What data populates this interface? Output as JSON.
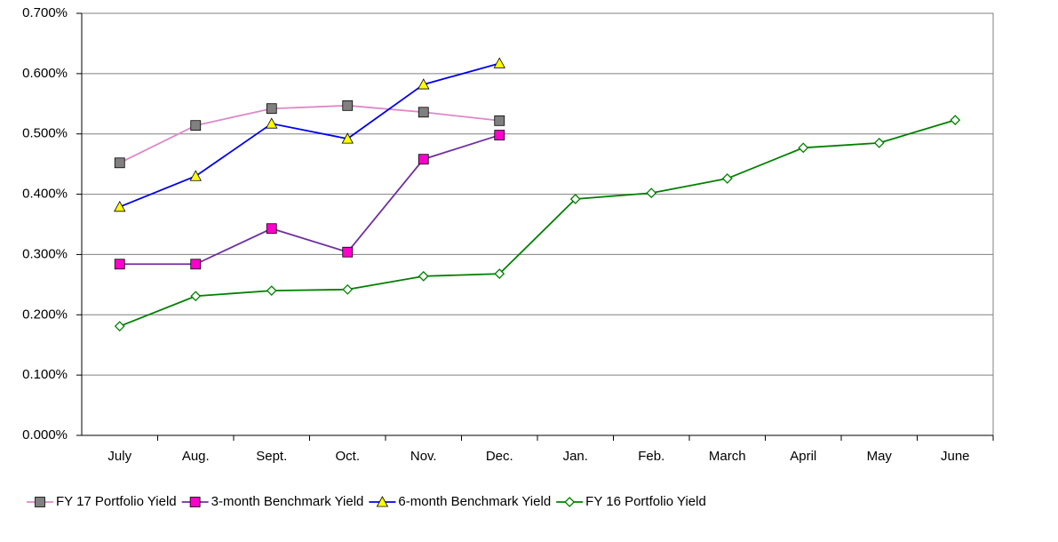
{
  "chart_data": {
    "type": "line",
    "categories": [
      "July",
      "Aug.",
      "Sept.",
      "Oct.",
      "Nov.",
      "Dec.",
      "Jan.",
      "Feb.",
      "March",
      "April",
      "May",
      "June"
    ],
    "ylim": [
      0,
      0.7
    ],
    "yticks": [
      {
        "value": 0,
        "label": "0.000%"
      },
      {
        "value": 0.1,
        "label": "0.100%"
      },
      {
        "value": 0.2,
        "label": "0.200%"
      },
      {
        "value": 0.3,
        "label": "0.300%"
      },
      {
        "value": 0.4,
        "label": "0.400%"
      },
      {
        "value": 0.5,
        "label": "0.500%"
      },
      {
        "value": 0.6,
        "label": "0.600%"
      },
      {
        "value": 0.7,
        "label": "0.700%"
      }
    ],
    "grid": true,
    "legend": "bottom",
    "series": [
      {
        "name": "FY 17 Portfolio Yield",
        "color": "#dd88c8",
        "marker": "square",
        "marker_color": "#808080",
        "values": [
          0.452,
          0.514,
          0.542,
          0.547,
          0.536,
          0.522,
          null,
          null,
          null,
          null,
          null,
          null
        ]
      },
      {
        "name": "3-month Benchmark Yield",
        "color": "#7030a0",
        "marker": "square",
        "marker_color": "#ff00cc",
        "values": [
          0.284,
          0.284,
          0.343,
          0.304,
          0.458,
          0.498,
          null,
          null,
          null,
          null,
          null,
          null
        ]
      },
      {
        "name": "6-month  Benchmark Yield",
        "color": "#0000ee",
        "marker": "triangle",
        "marker_color": "#ffff00",
        "values": [
          0.379,
          0.43,
          0.517,
          0.492,
          0.582,
          0.617,
          null,
          null,
          null,
          null,
          null,
          null
        ]
      },
      {
        "name": "FY 16 Portfolio Yield",
        "color": "#008000",
        "marker": "diamond",
        "marker_color": "#ffffff",
        "values": [
          0.181,
          0.231,
          0.24,
          0.242,
          0.264,
          0.268,
          0.392,
          0.402,
          0.426,
          0.477,
          0.485,
          0.523
        ]
      }
    ]
  }
}
